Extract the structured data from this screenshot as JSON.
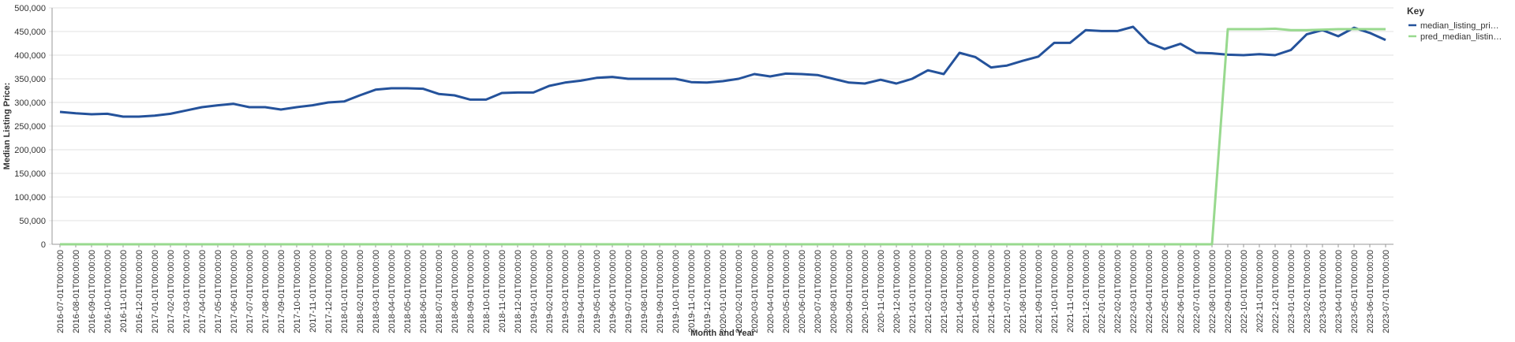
{
  "chart_data": {
    "type": "line",
    "x_label": "Month and Year",
    "y_label": "Median Listing Price:",
    "legend_title": "Key",
    "legend_position": "right",
    "grid": true,
    "categories": [
      "2016-07-01T00:00:00",
      "2016-08-01T00:00:00",
      "2016-09-01T00:00:00",
      "2016-10-01T00:00:00",
      "2016-11-01T00:00:00",
      "2016-12-01T00:00:00",
      "2017-01-01T00:00:00",
      "2017-02-01T00:00:00",
      "2017-03-01T00:00:00",
      "2017-04-01T00:00:00",
      "2017-05-01T00:00:00",
      "2017-06-01T00:00:00",
      "2017-07-01T00:00:00",
      "2017-08-01T00:00:00",
      "2017-09-01T00:00:00",
      "2017-10-01T00:00:00",
      "2017-11-01T00:00:00",
      "2017-12-01T00:00:00",
      "2018-01-01T00:00:00",
      "2018-02-01T00:00:00",
      "2018-03-01T00:00:00",
      "2018-04-01T00:00:00",
      "2018-05-01T00:00:00",
      "2018-06-01T00:00:00",
      "2018-07-01T00:00:00",
      "2018-08-01T00:00:00",
      "2018-09-01T00:00:00",
      "2018-10-01T00:00:00",
      "2018-11-01T00:00:00",
      "2018-12-01T00:00:00",
      "2019-01-01T00:00:00",
      "2019-02-01T00:00:00",
      "2019-03-01T00:00:00",
      "2019-04-01T00:00:00",
      "2019-05-01T00:00:00",
      "2019-06-01T00:00:00",
      "2019-07-01T00:00:00",
      "2019-08-01T00:00:00",
      "2019-09-01T00:00:00",
      "2019-10-01T00:00:00",
      "2019-11-01T00:00:00",
      "2019-12-01T00:00:00",
      "2020-01-01T00:00:00",
      "2020-02-01T00:00:00",
      "2020-03-01T00:00:00",
      "2020-04-01T00:00:00",
      "2020-05-01T00:00:00",
      "2020-06-01T00:00:00",
      "2020-07-01T00:00:00",
      "2020-08-01T00:00:00",
      "2020-09-01T00:00:00",
      "2020-10-01T00:00:00",
      "2020-11-01T00:00:00",
      "2020-12-01T00:00:00",
      "2021-01-01T00:00:00",
      "2021-02-01T00:00:00",
      "2021-03-01T00:00:00",
      "2021-04-01T00:00:00",
      "2021-05-01T00:00:00",
      "2021-06-01T00:00:00",
      "2021-07-01T00:00:00",
      "2021-08-01T00:00:00",
      "2021-09-01T00:00:00",
      "2021-10-01T00:00:00",
      "2021-11-01T00:00:00",
      "2021-12-01T00:00:00",
      "2022-01-01T00:00:00",
      "2022-02-01T00:00:00",
      "2022-03-01T00:00:00",
      "2022-04-01T00:00:00",
      "2022-05-01T00:00:00",
      "2022-06-01T00:00:00",
      "2022-07-01T00:00:00",
      "2022-08-01T00:00:00",
      "2022-09-01T00:00:00",
      "2022-10-01T00:00:00",
      "2022-11-01T00:00:00",
      "2022-12-01T00:00:00",
      "2023-01-01T00:00:00",
      "2023-02-01T00:00:00",
      "2023-03-01T00:00:00",
      "2023-04-01T00:00:00",
      "2023-05-01T00:00:00",
      "2023-06-01T00:00:00",
      "2023-07-01T00:00:00"
    ],
    "series": [
      {
        "name": "median_listing_pri…",
        "color": "#24529b",
        "values": [
          280000,
          277000,
          275000,
          276000,
          270000,
          270000,
          272000,
          276000,
          283000,
          290000,
          294000,
          297000,
          290000,
          290000,
          285000,
          290000,
          294000,
          300000,
          302000,
          315000,
          327000,
          330000,
          330000,
          329000,
          318000,
          315000,
          306000,
          306000,
          320000,
          321000,
          321000,
          335000,
          342000,
          346000,
          352000,
          354000,
          350000,
          350000,
          350000,
          350000,
          343000,
          342000,
          345000,
          350000,
          360000,
          355000,
          361000,
          360000,
          358000,
          350000,
          342000,
          340000,
          348000,
          340000,
          350000,
          368000,
          360000,
          405000,
          396000,
          374000,
          378000,
          388000,
          397000,
          426000,
          426000,
          453000,
          451000,
          451000,
          460000,
          426000,
          413000,
          424000,
          405000,
          404000,
          401000,
          400000,
          402000,
          400000,
          411000,
          444000,
          453000,
          440000,
          458000,
          447000,
          432000
        ]
      },
      {
        "name": "pred_median_listin…",
        "color": "#98d98e",
        "values": [
          0,
          0,
          0,
          0,
          0,
          0,
          0,
          0,
          0,
          0,
          0,
          0,
          0,
          0,
          0,
          0,
          0,
          0,
          0,
          0,
          0,
          0,
          0,
          0,
          0,
          0,
          0,
          0,
          0,
          0,
          0,
          0,
          0,
          0,
          0,
          0,
          0,
          0,
          0,
          0,
          0,
          0,
          0,
          0,
          0,
          0,
          0,
          0,
          0,
          0,
          0,
          0,
          0,
          0,
          0,
          0,
          0,
          0,
          0,
          0,
          0,
          0,
          0,
          0,
          0,
          0,
          0,
          0,
          0,
          0,
          0,
          0,
          0,
          0,
          455000,
          455000,
          455000,
          456000,
          453000,
          453000,
          454000,
          455000,
          455000,
          455000,
          455000
        ]
      }
    ],
    "ylim": [
      0,
      500000
    ],
    "yticks": [
      0,
      {
        "value": 50000,
        "label": "50,000"
      },
      {
        "value": 100000,
        "label": "100,000"
      },
      {
        "value": 150000,
        "label": "150,000"
      },
      {
        "value": 200000,
        "label": "200,000"
      },
      {
        "value": 250000,
        "label": "250,000"
      },
      {
        "value": 300000,
        "label": "300,000"
      },
      {
        "value": 350000,
        "label": "350,000"
      },
      {
        "value": 400000,
        "label": "400,000"
      },
      {
        "value": 450000,
        "label": "450,000"
      },
      {
        "value": 500000,
        "label": "500,000"
      }
    ]
  }
}
